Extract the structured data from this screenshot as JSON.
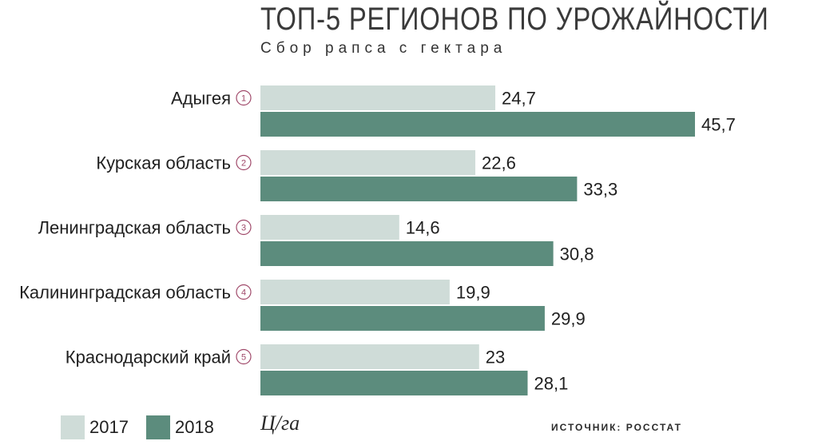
{
  "chart_data": {
    "type": "bar",
    "orientation": "horizontal",
    "title": "ТОП-5 РЕГИОНОВ ПО УРОЖАЙНОСТИ",
    "subtitle": "Сбор рапса с гектара",
    "categories": [
      "Адыгея",
      "Курская область",
      "Ленинградская область",
      "Калининградская область",
      "Краснодарский край"
    ],
    "ranks": [
      "1",
      "2",
      "3",
      "4",
      "5"
    ],
    "series": [
      {
        "name": "2017",
        "color": "#cfdcd8",
        "values": [
          24.7,
          22.6,
          14.6,
          19.9,
          23
        ],
        "labels": [
          "24,7",
          "22,6",
          "14,6",
          "19,9",
          "23"
        ]
      },
      {
        "name": "2018",
        "color": "#5c8c7d",
        "values": [
          45.7,
          33.3,
          30.8,
          29.9,
          28.1
        ],
        "labels": [
          "45,7",
          "33,3",
          "30,8",
          "29,9",
          "28,1"
        ]
      }
    ],
    "xlim": [
      0,
      45.7
    ],
    "unit": "Ц/га",
    "source": "ИСТОЧНИК: РОССТАТ",
    "grid": false,
    "legend_position": "bottom-left",
    "rank_color": "#a0496a"
  }
}
